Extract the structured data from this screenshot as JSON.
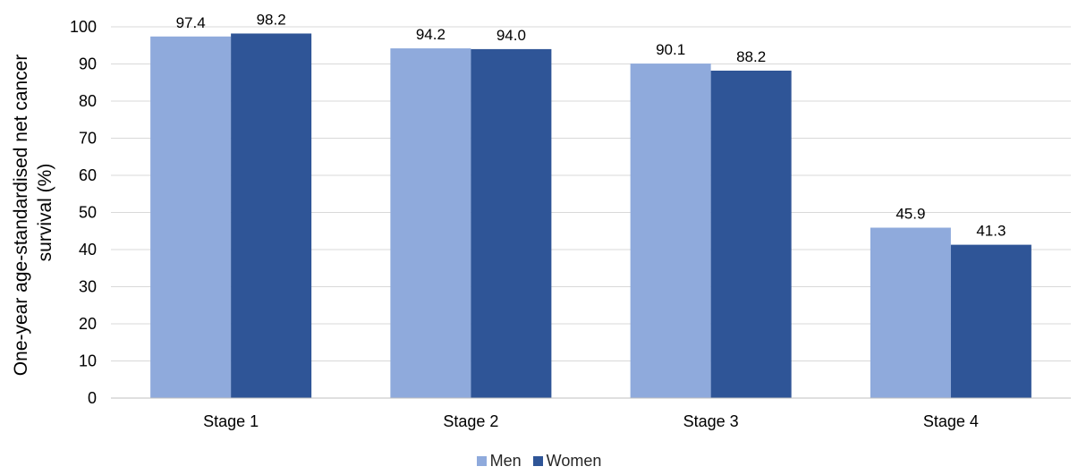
{
  "chart_data": {
    "type": "bar",
    "categories": [
      "Stage 1",
      "Stage 2",
      "Stage 3",
      "Stage 4"
    ],
    "series": [
      {
        "name": "Men",
        "values": [
          97.4,
          94.2,
          90.1,
          45.9
        ],
        "labels": [
          "97.4",
          "94.2",
          "90.1",
          "45.9"
        ],
        "color": "#8faadc"
      },
      {
        "name": "Women",
        "values": [
          98.2,
          94.0,
          88.2,
          41.3
        ],
        "labels": [
          "98.2",
          "94.0",
          "88.2",
          "41.3"
        ],
        "color": "#2f5597"
      }
    ],
    "title": "",
    "xlabel": "",
    "ylabel_lines": [
      "One-year age-standardised net cancer",
      "survival (%)"
    ],
    "ylim": [
      0,
      100
    ],
    "yticks": [
      "0",
      "10",
      "20",
      "30",
      "40",
      "50",
      "60",
      "70",
      "80",
      "90",
      "100"
    ],
    "grid": true,
    "legend_position": "bottom"
  }
}
